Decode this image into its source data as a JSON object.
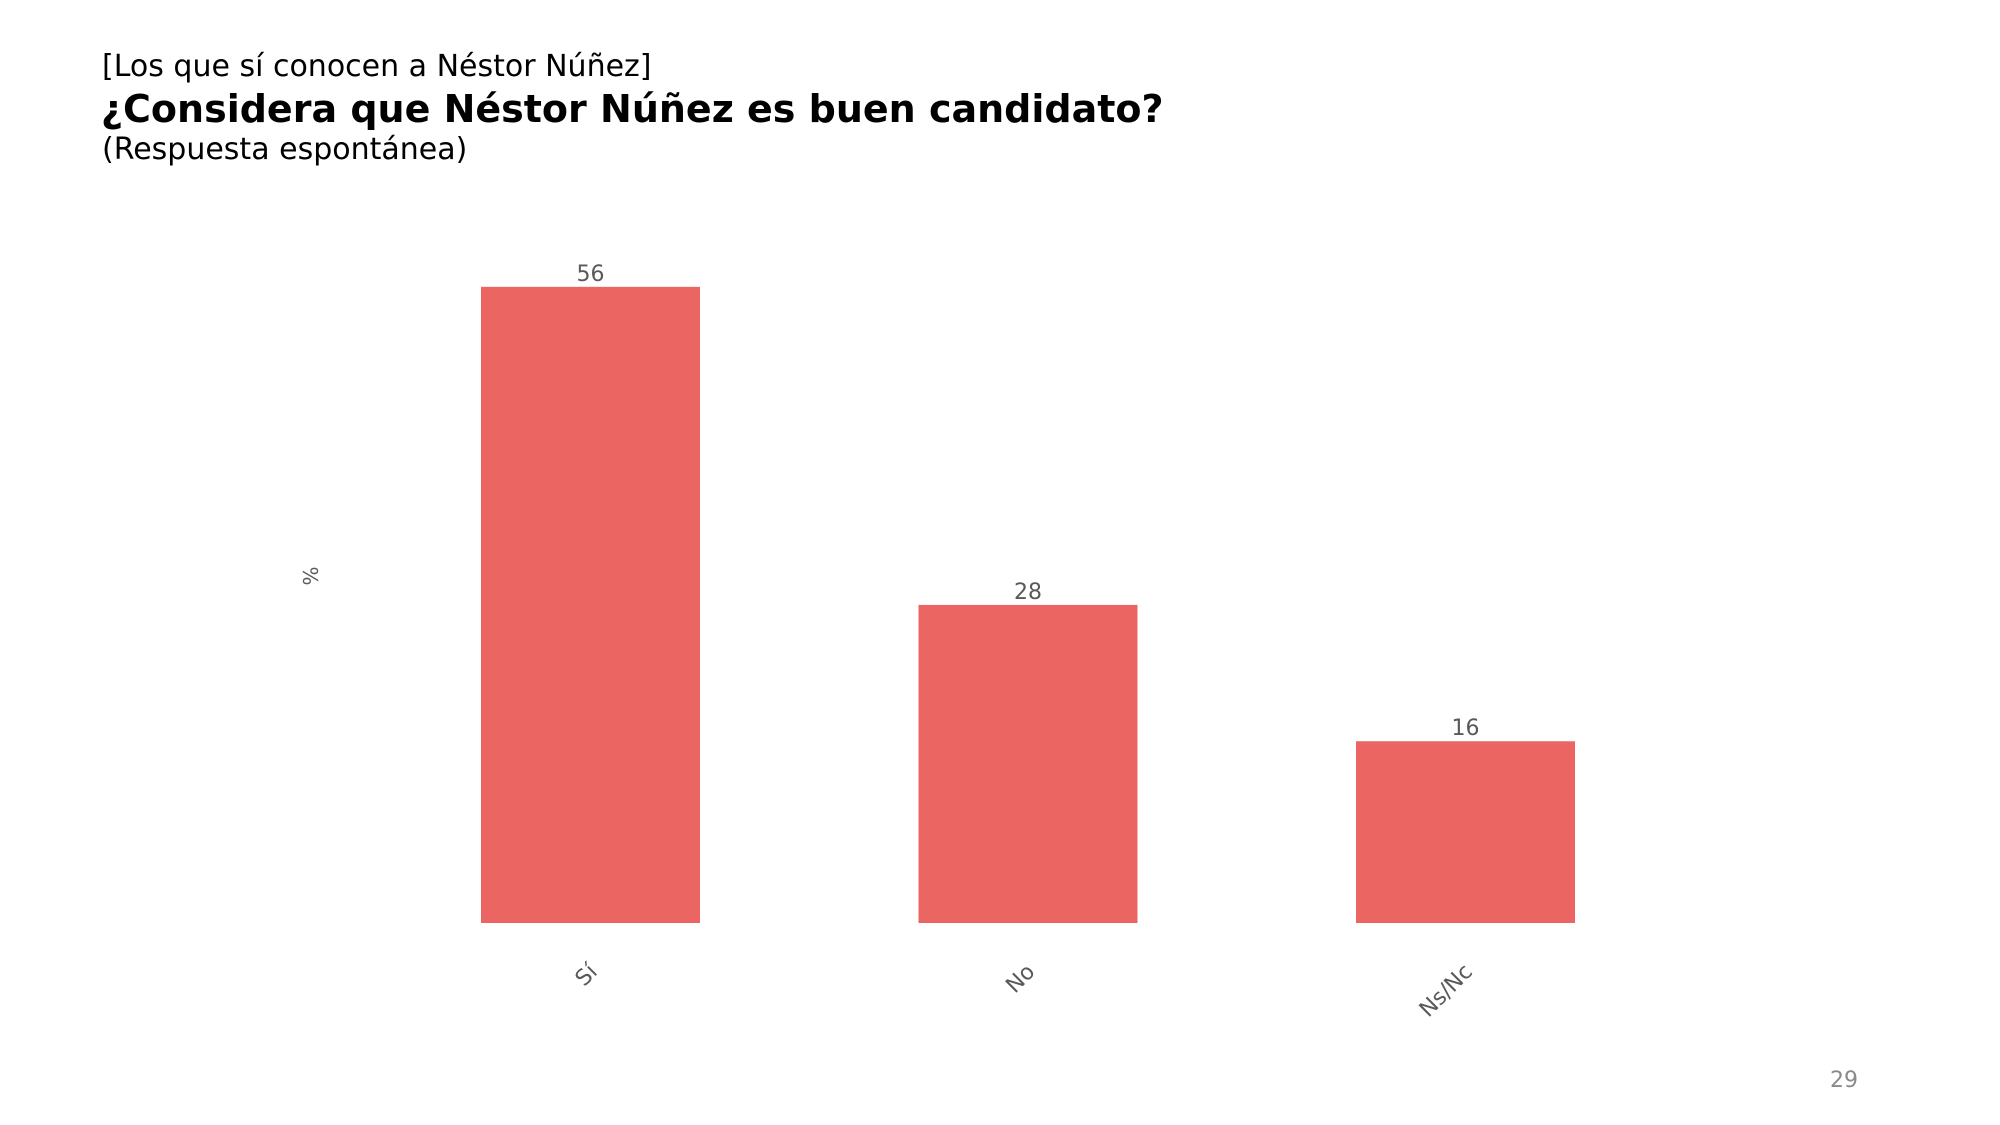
{
  "slide": {
    "pre_title": "[Los que sí conocen a Néstor Núñez]",
    "title": "¿Considera que Néstor Núñez es buen candidato?",
    "subtitle": "(Respuesta espontánea)",
    "page_number": "29"
  },
  "chart_data": {
    "type": "bar",
    "categories": [
      "Sí",
      "No",
      "Ns/Nc"
    ],
    "values": [
      56,
      28,
      16
    ],
    "value_labels": [
      "56",
      "28",
      "16"
    ],
    "xlabel": "",
    "ylabel": "%",
    "ylim": [
      0,
      60
    ],
    "grid": false,
    "legend": "none",
    "bar_color": "#EB6662"
  }
}
